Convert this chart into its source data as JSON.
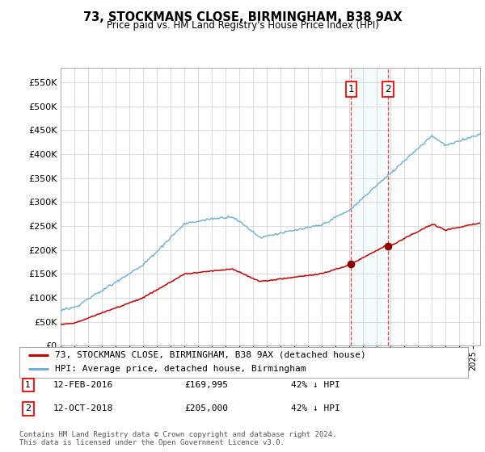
{
  "title": "73, STOCKMANS CLOSE, BIRMINGHAM, B38 9AX",
  "subtitle": "Price paid vs. HM Land Registry's House Price Index (HPI)",
  "legend_line1": "73, STOCKMANS CLOSE, BIRMINGHAM, B38 9AX (detached house)",
  "legend_line2": "HPI: Average price, detached house, Birmingham",
  "transaction1_date": "12-FEB-2016",
  "transaction1_price": "£169,995",
  "transaction1_hpi": "42% ↓ HPI",
  "transaction1_year": 2016.12,
  "transaction1_value": 169995,
  "transaction2_date": "12-OCT-2018",
  "transaction2_price": "£205,000",
  "transaction2_hpi": "42% ↓ HPI",
  "transaction2_year": 2018.79,
  "transaction2_value": 205000,
  "footer": "Contains HM Land Registry data © Crown copyright and database right 2024.\nThis data is licensed under the Open Government Licence v3.0.",
  "hpi_color": "#6baed6",
  "price_color": "#cc0000",
  "marker_color": "#8b0000",
  "ylim_min": 0,
  "ylim_max": 580000,
  "yticks": [
    0,
    50000,
    100000,
    150000,
    200000,
    250000,
    300000,
    350000,
    400000,
    450000,
    500000,
    550000
  ],
  "xlim_min": 1995.0,
  "xlim_max": 2025.5,
  "background_color": "#ffffff",
  "grid_color": "#cccccc"
}
